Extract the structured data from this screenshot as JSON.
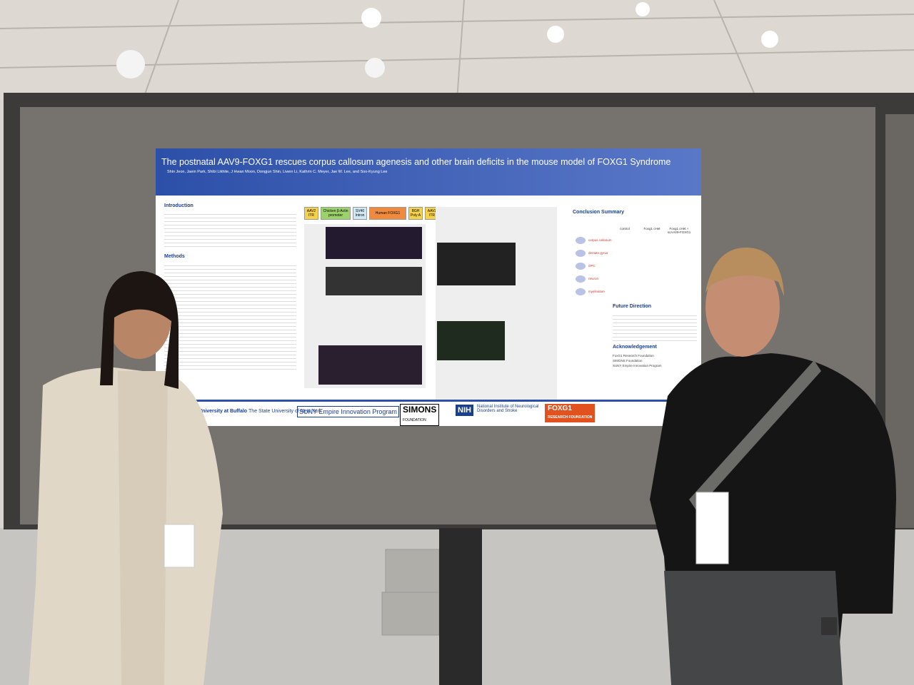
{
  "poster": {
    "title": "The postnatal AAV9-FOXG1 rescues corpus callosum agenesis and other brain deficits in the mouse model of FOXG1 Syndrome",
    "authors": "Shin Jeon, Jaein Park, Shibi Likhite, J Hwan Moon, Dongjun Shin, Liwen Li, Kathrin C. Meyer, Jae W. Lee, and Soo-Kyung Lee",
    "sections": {
      "introduction": "Introduction",
      "methods": "Methods",
      "conclusion": "Conclusion Summary",
      "future": "Future Direction",
      "acknowledgement": "Acknowledgement"
    },
    "construct": [
      "AAV2 ITR",
      "Chicken β-Actin promoter",
      "SV40 Intron",
      "Human FOXG1",
      "BGH Poly A",
      "AAV2 ITR"
    ],
    "summary_columns": [
      "control",
      "Foxg1 cHet",
      "Foxg1 cHet + scAAV9-FOXG1"
    ],
    "summary_rows": [
      "corpus callosum",
      "dentate gyrus",
      "OPC",
      "neuron",
      "myelination"
    ],
    "acknowledgements": [
      "FoxG1 Research Foundation",
      "SIMONS Foundation",
      "SUNY Empire Innovation Program"
    ],
    "logos": {
      "ub": "University at Buffalo",
      "ub_sub": "The State University of New York",
      "suny": "SUNY Empire Innovation Program",
      "simons": "SIMONS",
      "simons_sub": "FOUNDATION",
      "nih": "NIH",
      "ninds": "National Institute of Neurological Disorders and Stroke",
      "foxg1": "FOXG1",
      "foxg1_sub": "RESEARCH FOUNDATION"
    }
  }
}
